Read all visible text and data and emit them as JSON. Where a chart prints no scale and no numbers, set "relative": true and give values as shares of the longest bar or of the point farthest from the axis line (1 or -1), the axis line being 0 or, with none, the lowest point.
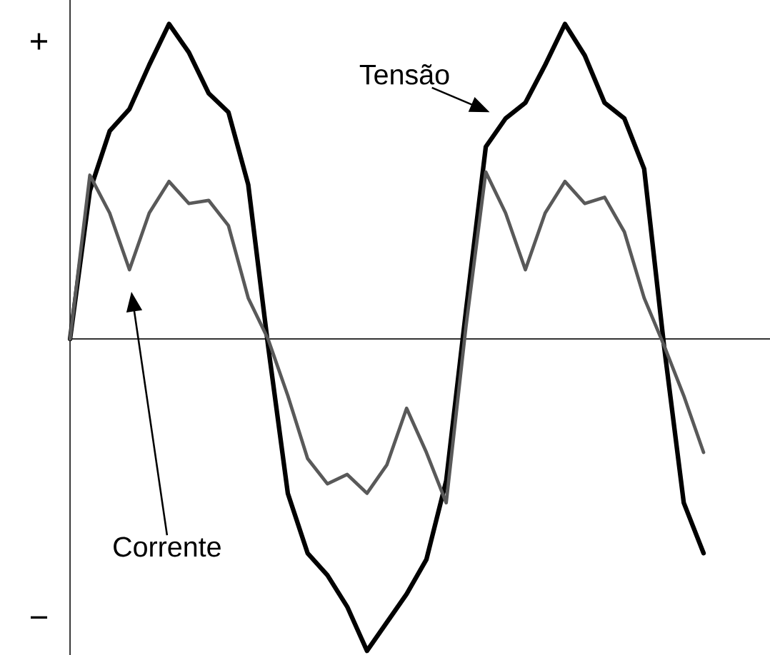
{
  "chart_data": {
    "type": "line",
    "relative": true,
    "categories": [
      null,
      null,
      null,
      null,
      null,
      null,
      null,
      null,
      null,
      null,
      null,
      null,
      null,
      null,
      null,
      null,
      null,
      null,
      null,
      null,
      null,
      null,
      null,
      null,
      null,
      null,
      null,
      null,
      null,
      null,
      null,
      null,
      null
    ],
    "series": [
      {
        "name": "Tensão",
        "color": "#000000",
        "values": [
          0,
          0.47,
          0.66,
          0.73,
          0.87,
          1.0,
          0.91,
          0.78,
          0.72,
          0.49,
          -0.02,
          -0.49,
          -0.68,
          -0.75,
          -0.85,
          -0.99,
          -0.9,
          -0.81,
          -0.7,
          -0.45,
          0.09,
          0.61,
          0.7,
          0.75,
          0.87,
          1.0,
          0.9,
          0.75,
          0.7,
          0.54,
          -0.02,
          -0.52,
          -0.68
        ]
      },
      {
        "name": "Corrente",
        "color": "#595959",
        "values": [
          0,
          0.52,
          0.4,
          0.22,
          0.4,
          0.5,
          0.43,
          0.44,
          0.36,
          0.13,
          0,
          -0.18,
          -0.38,
          -0.46,
          -0.43,
          -0.49,
          -0.4,
          -0.22,
          -0.36,
          -0.52,
          0.04,
          0.53,
          0.4,
          0.22,
          0.4,
          0.5,
          0.43,
          0.45,
          0.34,
          0.13,
          -0.02,
          -0.18,
          -0.36
        ]
      }
    ],
    "annotations": [
      "+",
      "−"
    ],
    "marker": "none",
    "line_style": "solid"
  }
}
